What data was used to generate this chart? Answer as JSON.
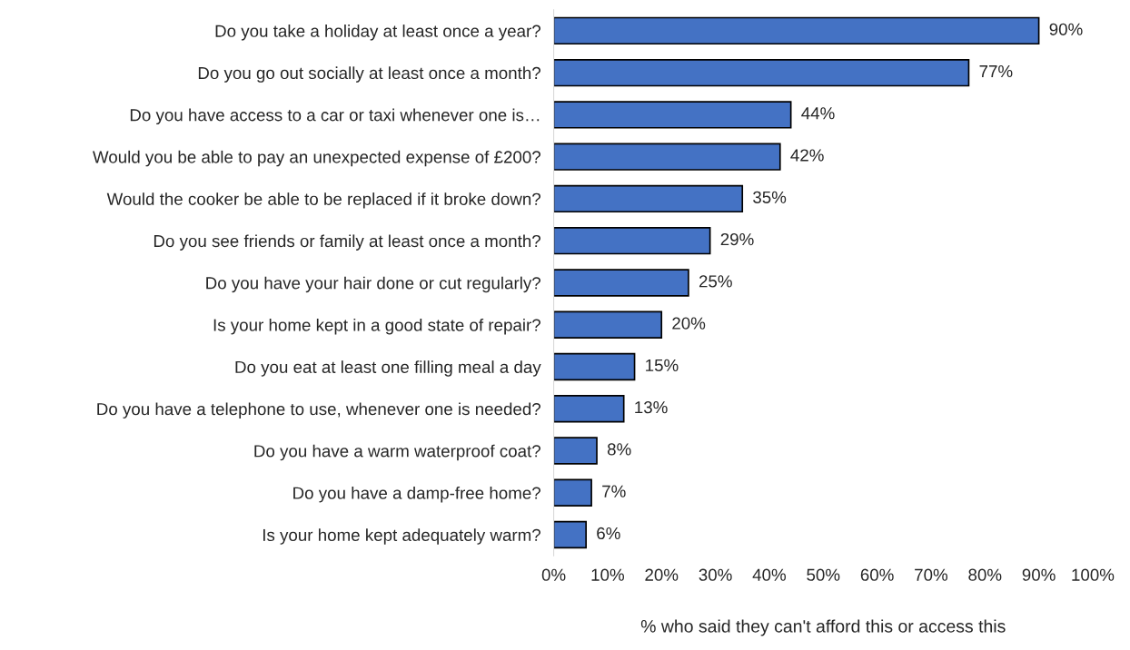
{
  "chart_data": {
    "type": "bar",
    "orientation": "horizontal",
    "categories": [
      "Do you take a holiday at least once a year?",
      "Do you go out socially at least once a month?",
      "Do you have access to a car or taxi whenever one is…",
      "Would you be able to pay an unexpected expense of £200?",
      "Would the cooker be able to be replaced if it broke down?",
      "Do you see friends or family at least once a month?",
      "Do you have your hair done or cut regularly?",
      "Is your home kept in a good state of repair?",
      "Do you eat at least one filling meal a day",
      "Do you have a telephone to use, whenever one is needed?",
      "Do you have a warm waterproof coat?",
      "Do you have a damp-free home?",
      "Is your home kept adequately warm?"
    ],
    "values": [
      90,
      77,
      44,
      42,
      35,
      29,
      25,
      20,
      15,
      13,
      8,
      7,
      6
    ],
    "value_labels": [
      "90%",
      "77%",
      "44%",
      "42%",
      "35%",
      "29%",
      "25%",
      "20%",
      "15%",
      "13%",
      "8%",
      "7%",
      "6%"
    ],
    "color": "#4472c4",
    "xlabel": "% who said they can't afford this or access this",
    "xlim": [
      0,
      100
    ],
    "xticks": [
      {
        "value": 0,
        "label": "0%"
      },
      {
        "value": 10,
        "label": "10%"
      },
      {
        "value": 20,
        "label": "20%"
      },
      {
        "value": 30,
        "label": "30%"
      },
      {
        "value": 40,
        "label": "40%"
      },
      {
        "value": 50,
        "label": "50%"
      },
      {
        "value": 60,
        "label": "60%"
      },
      {
        "value": 70,
        "label": "70%"
      },
      {
        "value": 80,
        "label": "80%"
      },
      {
        "value": 90,
        "label": "90%"
      },
      {
        "value": 100,
        "label": "100%"
      }
    ],
    "grid": false,
    "legend": false
  }
}
